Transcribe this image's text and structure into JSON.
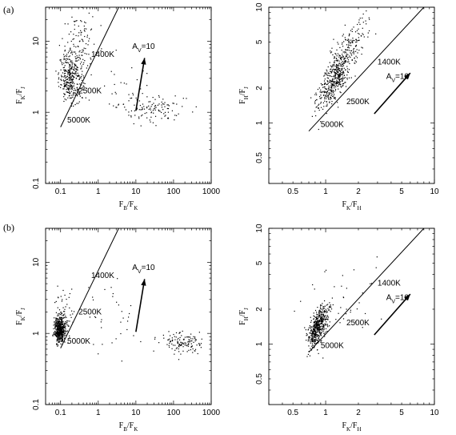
{
  "figure": {
    "panel_labels": [
      "(a)",
      "(b)"
    ]
  },
  "chart_data": [
    {
      "type": "scatter",
      "panel": "(a) left",
      "xlabel": "F_B/F_K",
      "ylabel": "F_K/F_J",
      "xscale": "log",
      "yscale": "log",
      "xlim": [
        0.04,
        1000
      ],
      "ylim": [
        0.1,
        30
      ],
      "xticks": [
        {
          "v": 0.1,
          "label": "0.1"
        },
        {
          "v": 1,
          "label": "1"
        },
        {
          "v": 10,
          "label": "10"
        },
        {
          "v": 100,
          "label": "100"
        },
        {
          "v": 1000,
          "label": "1000"
        }
      ],
      "yticks": [
        {
          "v": 0.1,
          "label": "0.1"
        },
        {
          "v": 1,
          "label": "1"
        },
        {
          "v": 10,
          "label": "10"
        }
      ],
      "blackbody_line": [
        [
          0.1,
          0.62
        ],
        [
          3.5,
          30
        ]
      ],
      "temperature_labels": [
        {
          "x": 0.65,
          "y": 6.0,
          "label": "1400K"
        },
        {
          "x": 0.3,
          "y": 1.85,
          "label": "2500K"
        },
        {
          "x": 0.15,
          "y": 0.72,
          "label": "5000K"
        }
      ],
      "reddening_vector": {
        "from": [
          10,
          1.05
        ],
        "to": [
          17,
          5.8
        ],
        "label": "A_V=10",
        "label_pos": [
          8,
          7.8
        ]
      },
      "clusters": [
        {
          "cx": 0.19,
          "cy": 3.0,
          "sx": 0.16,
          "sy": 0.17,
          "n": 330,
          "x_range": [
            0.06,
            1.2
          ],
          "y_range": [
            1.2,
            30
          ]
        },
        {
          "cx": 0.3,
          "cy": 8.0,
          "sx": 0.22,
          "sy": 0.28,
          "n": 120,
          "x_range": [
            0.07,
            2
          ],
          "y_range": [
            2,
            30
          ]
        },
        {
          "cx": 30,
          "cy": 1.15,
          "sx": 0.45,
          "sy": 0.1,
          "n": 100,
          "x_range": [
            3,
            500
          ],
          "y_range": [
            0.5,
            3.5
          ]
        },
        {
          "cx": 5,
          "cy": 2.2,
          "sx": 0.5,
          "sy": 0.25,
          "n": 40,
          "x_range": [
            1,
            60
          ],
          "y_range": [
            0.5,
            8
          ]
        }
      ]
    },
    {
      "type": "scatter",
      "panel": "(a) right",
      "xlabel": "F_K/F_H",
      "ylabel": "F_H/F_J",
      "xscale": "log",
      "yscale": "log",
      "xlim": [
        0.3,
        10
      ],
      "ylim": [
        0.3,
        10
      ],
      "xticks": [
        {
          "v": 0.5,
          "label": "0.5"
        },
        {
          "v": 1,
          "label": "1"
        },
        {
          "v": 2,
          "label": "2"
        },
        {
          "v": 5,
          "label": "5"
        },
        {
          "v": 10,
          "label": "10"
        }
      ],
      "yticks": [
        {
          "v": 0.5,
          "label": "0.5"
        },
        {
          "v": 1,
          "label": "1"
        },
        {
          "v": 2,
          "label": "2"
        },
        {
          "v": 5,
          "label": "5"
        },
        {
          "v": 10,
          "label": "10"
        }
      ],
      "blackbody_line": [
        [
          0.7,
          0.85
        ],
        [
          8,
          10
        ]
      ],
      "temperature_labels": [
        {
          "x": 3.0,
          "y": 3.2,
          "label": "1400K"
        },
        {
          "x": 1.55,
          "y": 1.45,
          "label": "2500K"
        },
        {
          "x": 0.9,
          "y": 0.92,
          "label": "5000K"
        }
      ],
      "reddening_vector": {
        "from": [
          2.8,
          1.2
        ],
        "to": [
          6,
          2.7
        ],
        "label": "A_V=10",
        "label_pos": [
          3.6,
          2.4
        ]
      },
      "clusters": [
        {
          "cx": 1.2,
          "cy": 2.4,
          "sx": 0.08,
          "sy": 0.09,
          "n": 450,
          "x_range": [
            0.7,
            2.5
          ],
          "y_range": [
            0.7,
            9
          ],
          "corr": 1.15
        },
        {
          "cx": 1.6,
          "cy": 4.2,
          "sx": 0.1,
          "sy": 0.1,
          "n": 140,
          "x_range": [
            0.9,
            3.5
          ],
          "y_range": [
            2,
            9.5
          ],
          "corr": 1.1
        }
      ]
    },
    {
      "type": "scatter",
      "panel": "(b) left",
      "xlabel": "F_B/F_K",
      "ylabel": "F_K/F_J",
      "xscale": "log",
      "yscale": "log",
      "xlim": [
        0.04,
        1000
      ],
      "ylim": [
        0.1,
        30
      ],
      "xticks": [
        {
          "v": 0.1,
          "label": "0.1"
        },
        {
          "v": 1,
          "label": "1"
        },
        {
          "v": 10,
          "label": "10"
        },
        {
          "v": 100,
          "label": "100"
        },
        {
          "v": 1000,
          "label": "1000"
        }
      ],
      "yticks": [
        {
          "v": 0.1,
          "label": "0.1"
        },
        {
          "v": 1,
          "label": "1"
        },
        {
          "v": 10,
          "label": "10"
        }
      ],
      "blackbody_line": [
        [
          0.1,
          0.62
        ],
        [
          3.5,
          30
        ]
      ],
      "temperature_labels": [
        {
          "x": 0.65,
          "y": 6.0,
          "label": "1400K"
        },
        {
          "x": 0.3,
          "y": 1.85,
          "label": "2500K"
        },
        {
          "x": 0.15,
          "y": 0.72,
          "label": "5000K"
        }
      ],
      "reddening_vector": {
        "from": [
          10,
          1.05
        ],
        "to": [
          17,
          5.8
        ],
        "label": "A_V=10",
        "label_pos": [
          8,
          7.8
        ]
      },
      "clusters": [
        {
          "cx": 0.095,
          "cy": 1.1,
          "sx": 0.07,
          "sy": 0.09,
          "n": 460,
          "x_range": [
            0.06,
            0.3
          ],
          "y_range": [
            0.6,
            3
          ]
        },
        {
          "cx": 0.12,
          "cy": 1.6,
          "sx": 0.12,
          "sy": 0.18,
          "n": 80,
          "x_range": [
            0.06,
            0.8
          ],
          "y_range": [
            0.7,
            5
          ]
        },
        {
          "cx": 150,
          "cy": 0.75,
          "sx": 0.3,
          "sy": 0.07,
          "n": 130,
          "x_range": [
            5,
            600
          ],
          "y_range": [
            0.4,
            1.4
          ]
        },
        {
          "cx": 3,
          "cy": 1.5,
          "sx": 0.6,
          "sy": 0.25,
          "n": 35,
          "x_range": [
            0.3,
            200
          ],
          "y_range": [
            0.4,
            6
          ]
        }
      ]
    },
    {
      "type": "scatter",
      "panel": "(b) right",
      "xlabel": "F_K/F_H",
      "ylabel": "F_H/F_J",
      "xscale": "log",
      "yscale": "log",
      "xlim": [
        0.3,
        10
      ],
      "ylim": [
        0.3,
        10
      ],
      "xticks": [
        {
          "v": 0.5,
          "label": "0.5"
        },
        {
          "v": 1,
          "label": "1"
        },
        {
          "v": 2,
          "label": "2"
        },
        {
          "v": 5,
          "label": "5"
        },
        {
          "v": 10,
          "label": "10"
        }
      ],
      "yticks": [
        {
          "v": 0.5,
          "label": "0.5"
        },
        {
          "v": 1,
          "label": "1"
        },
        {
          "v": 2,
          "label": "2"
        },
        {
          "v": 5,
          "label": "5"
        },
        {
          "v": 10,
          "label": "10"
        }
      ],
      "blackbody_line": [
        [
          0.7,
          0.85
        ],
        [
          8,
          10
        ]
      ],
      "temperature_labels": [
        {
          "x": 3.0,
          "y": 3.2,
          "label": "1400K"
        },
        {
          "x": 1.55,
          "y": 1.45,
          "label": "2500K"
        },
        {
          "x": 0.9,
          "y": 0.92,
          "label": "5000K"
        }
      ],
      "reddening_vector": {
        "from": [
          2.8,
          1.2
        ],
        "to": [
          6,
          2.7
        ],
        "label": "A_V=10",
        "label_pos": [
          3.6,
          2.4
        ]
      },
      "clusters": [
        {
          "cx": 0.85,
          "cy": 1.4,
          "sx": 0.045,
          "sy": 0.07,
          "n": 480,
          "x_range": [
            0.65,
            1.4
          ],
          "y_range": [
            0.6,
            3.2
          ],
          "corr": 1.2
        },
        {
          "cx": 1.3,
          "cy": 2.2,
          "sx": 0.18,
          "sy": 0.2,
          "n": 45,
          "x_range": [
            0.5,
            4
          ],
          "y_range": [
            0.5,
            6
          ],
          "corr": 0.3
        }
      ]
    }
  ]
}
